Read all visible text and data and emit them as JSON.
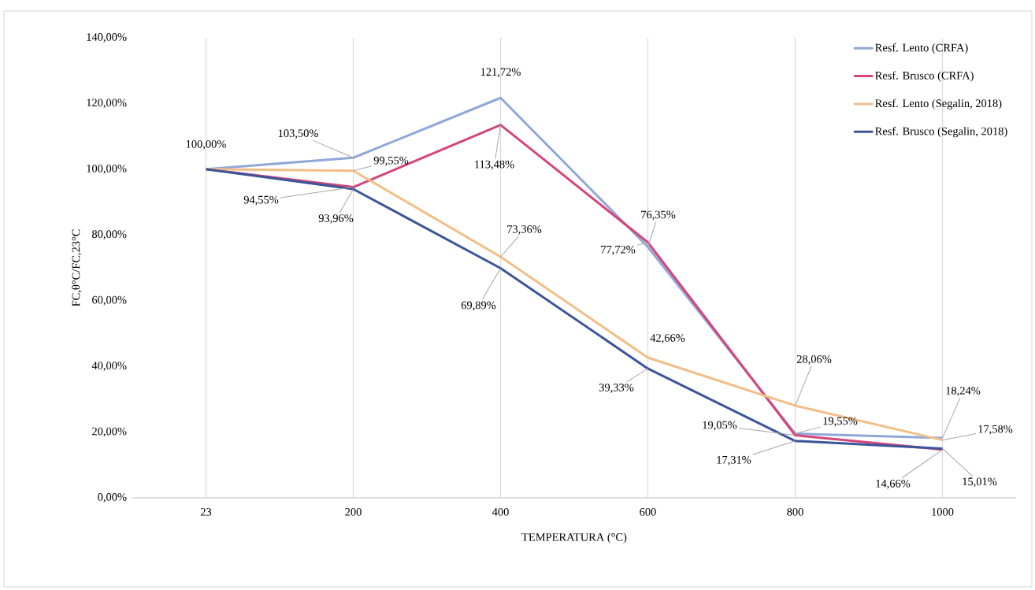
{
  "chart_data": {
    "type": "line",
    "xlabel": "TEMPERATURA (°C)",
    "ylabel": "FC,θ°C/FC,23°C",
    "categories": [
      "23",
      "200",
      "400",
      "600",
      "800",
      "1000"
    ],
    "ylim": [
      0,
      140
    ],
    "yticks": [
      {
        "value": 0,
        "label": "0,00%"
      },
      {
        "value": 20,
        "label": "20,00%"
      },
      {
        "value": 40,
        "label": "40,00%"
      },
      {
        "value": 60,
        "label": "60,00%"
      },
      {
        "value": 80,
        "label": "80,00%"
      },
      {
        "value": 100,
        "label": "100,00%"
      },
      {
        "value": 120,
        "label": "120,00%"
      },
      {
        "value": 140,
        "label": "140,00%"
      }
    ],
    "grid": "x",
    "legend": "top right",
    "marker": "none",
    "line_style": "solid",
    "series": [
      {
        "name": "Resf. Lento (CRFA)",
        "color": "#8fa8d8",
        "values": [
          100,
          103.5,
          121.72,
          76.35,
          19.55,
          18.24
        ],
        "value_labels": [
          "100,00%",
          "103,50%",
          "121,72%",
          "76,35%",
          "19,55%",
          "18,24%"
        ]
      },
      {
        "name": "Resf. Brusco (CRFA)",
        "color": "#d6457a",
        "values": [
          100,
          94.55,
          113.48,
          77.72,
          19.05,
          14.66
        ],
        "value_labels": [
          null,
          "94,55%",
          "113,48%",
          "77,72%",
          "19,05%",
          "14,66%"
        ]
      },
      {
        "name": "Resf. Lento (Segalin, 2018)",
        "color": "#f3bd86",
        "values": [
          100,
          99.55,
          73.36,
          42.66,
          28.06,
          17.58
        ],
        "value_labels": [
          null,
          "99,55%",
          "73,36%",
          "42,66%",
          "28,06%",
          "17,58%"
        ]
      },
      {
        "name": "Resf. Brusco (Segalin, 2018)",
        "color": "#3a5599",
        "values": [
          100,
          93.96,
          69.89,
          39.33,
          17.31,
          15.01
        ],
        "value_labels": [
          null,
          "93,96%",
          "69,89%",
          "39,33%",
          "17,31%",
          "15,01%"
        ]
      }
    ]
  }
}
